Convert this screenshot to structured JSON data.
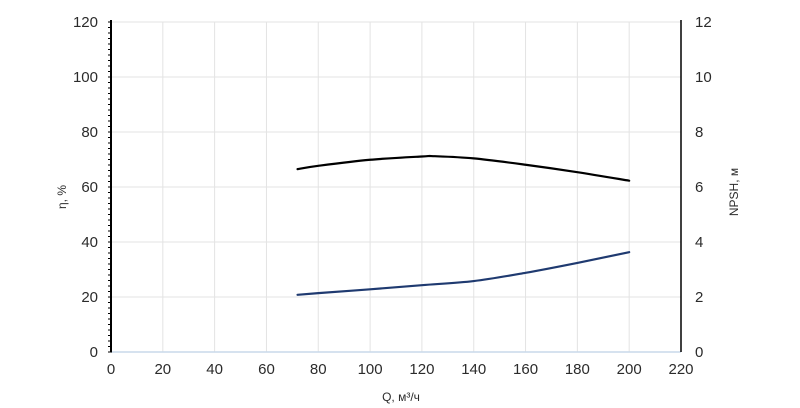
{
  "chart_data": {
    "type": "line",
    "xlabel": "Q, м³/ч",
    "ylabel": "η, %",
    "y2label": "NPSH, м",
    "xlim": [
      0,
      220
    ],
    "ylim": [
      0,
      120
    ],
    "y2lim": [
      0,
      12
    ],
    "x_ticks": [
      "0",
      "20",
      "40",
      "60",
      "80",
      "100",
      "120",
      "140",
      "160",
      "180",
      "200",
      "220"
    ],
    "y_ticks": [
      "0",
      "20",
      "40",
      "60",
      "80",
      "100",
      "120"
    ],
    "y2_ticks": [
      "0",
      "2",
      "4",
      "6",
      "8",
      "10",
      "12"
    ],
    "grid": true,
    "series": [
      {
        "axis": "left",
        "color": "#000000",
        "x": [
          72,
          80,
          100,
          120,
          125,
          140,
          160,
          180,
          200
        ],
        "y": [
          66.5,
          67.7,
          69.9,
          71.1,
          71.2,
          70.4,
          68.1,
          65.4,
          62.3
        ]
      },
      {
        "axis": "right",
        "color": "#1f3a70",
        "x": [
          72,
          80,
          100,
          120,
          140,
          160,
          180,
          200
        ],
        "y": [
          2.08,
          2.14,
          2.28,
          2.43,
          2.58,
          2.88,
          3.24,
          3.63
        ]
      }
    ]
  }
}
